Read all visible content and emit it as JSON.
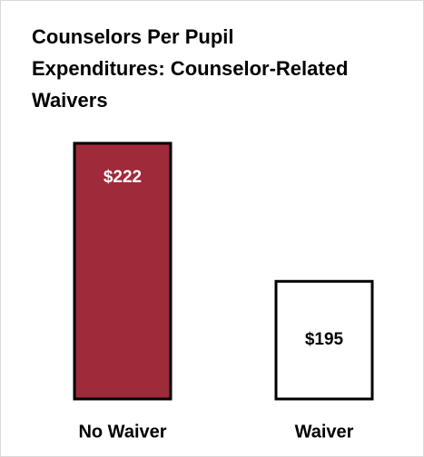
{
  "chart_data": {
    "type": "bar",
    "title": "Counselors Per Pupil Expenditures: Counselor-Related Waivers",
    "categories": [
      "No Waiver",
      "Waiver"
    ],
    "values": [
      222,
      195
    ],
    "value_labels": [
      "$222",
      "$195"
    ],
    "colors": [
      "#9e2a3a",
      "#ffffff"
    ],
    "ylim": [
      172,
      222
    ]
  }
}
